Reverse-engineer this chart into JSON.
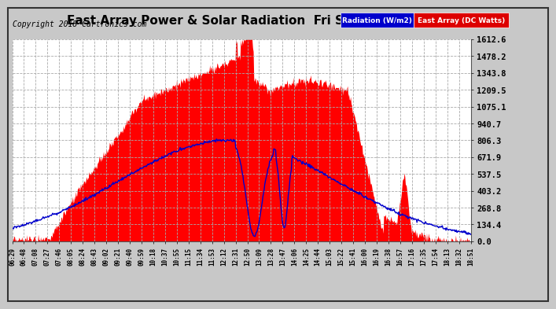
{
  "title": "East Array Power & Solar Radiation  Fri Sep 14 19:03",
  "copyright": "Copyright 2018 Cartronics.com",
  "yticks": [
    0.0,
    134.4,
    268.8,
    403.2,
    537.5,
    671.9,
    806.3,
    940.7,
    1075.1,
    1209.5,
    1343.8,
    1478.2,
    1612.6
  ],
  "ymax": 1612.6,
  "ymin": 0.0,
  "background_color": "#c8c8c8",
  "plot_bg_color": "#ffffff",
  "grid_color": "#aaaaaa",
  "bar_color": "#ff0000",
  "line_color": "#0000cc",
  "xtick_labels": [
    "06:29",
    "06:48",
    "07:08",
    "07:27",
    "07:46",
    "08:05",
    "08:24",
    "08:43",
    "09:02",
    "09:21",
    "09:40",
    "09:59",
    "10:18",
    "10:37",
    "10:55",
    "11:15",
    "11:34",
    "11:53",
    "12:12",
    "12:31",
    "12:50",
    "13:09",
    "13:28",
    "13:47",
    "14:06",
    "14:25",
    "14:44",
    "15:03",
    "15:22",
    "15:41",
    "16:00",
    "16:19",
    "16:38",
    "16:57",
    "17:16",
    "17:35",
    "17:54",
    "18:13",
    "18:32",
    "18:51"
  ],
  "title_fontsize": 11,
  "copyright_fontsize": 7,
  "ytick_fontsize": 7.5,
  "xtick_fontsize": 5.5,
  "legend_rad_color": "#0000cc",
  "legend_east_color": "#dd0000"
}
